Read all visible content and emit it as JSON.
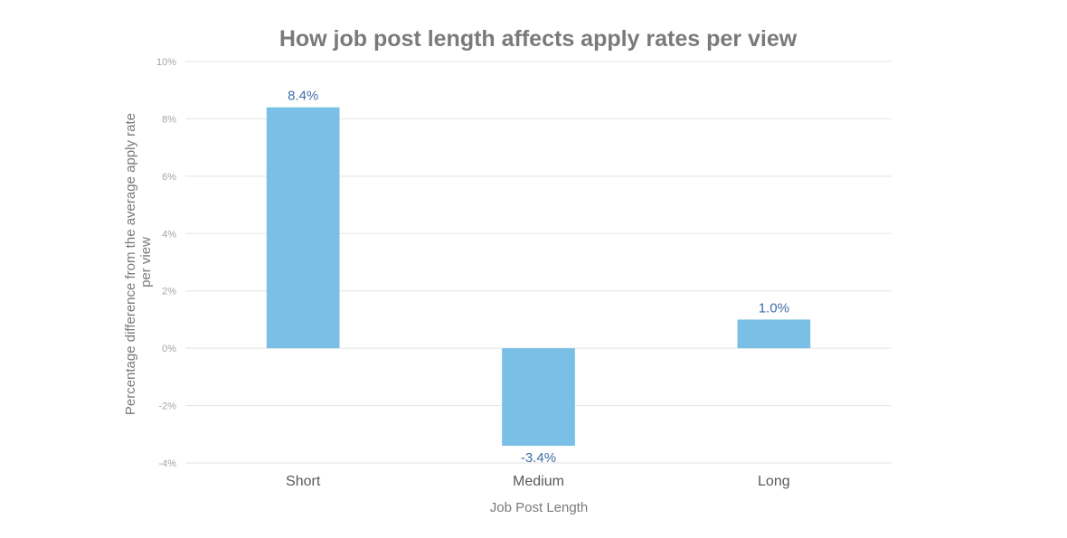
{
  "chart_data": {
    "type": "bar",
    "title": "How job post length affects apply rates per view",
    "xlabel": "Job Post Length",
    "ylabel_lines": [
      "Percentage difference from the average apply rate",
      "per view"
    ],
    "categories": [
      "Short",
      "Medium",
      "Long"
    ],
    "values": [
      8.4,
      -3.4,
      1.0
    ],
    "data_labels": [
      "8.4%",
      "-3.4%",
      "1.0%"
    ],
    "ylim": [
      -4,
      10
    ],
    "yticks": [
      10,
      8,
      6,
      4,
      2,
      0,
      -2,
      -4
    ],
    "ytick_labels": [
      "10%",
      "8%",
      "6%",
      "4%",
      "2%",
      "0%",
      "-2%",
      "-4%"
    ],
    "grid": true,
    "legend": "none",
    "colors": {
      "bar": "#7abfe6",
      "label": "#3f6fa8"
    }
  }
}
